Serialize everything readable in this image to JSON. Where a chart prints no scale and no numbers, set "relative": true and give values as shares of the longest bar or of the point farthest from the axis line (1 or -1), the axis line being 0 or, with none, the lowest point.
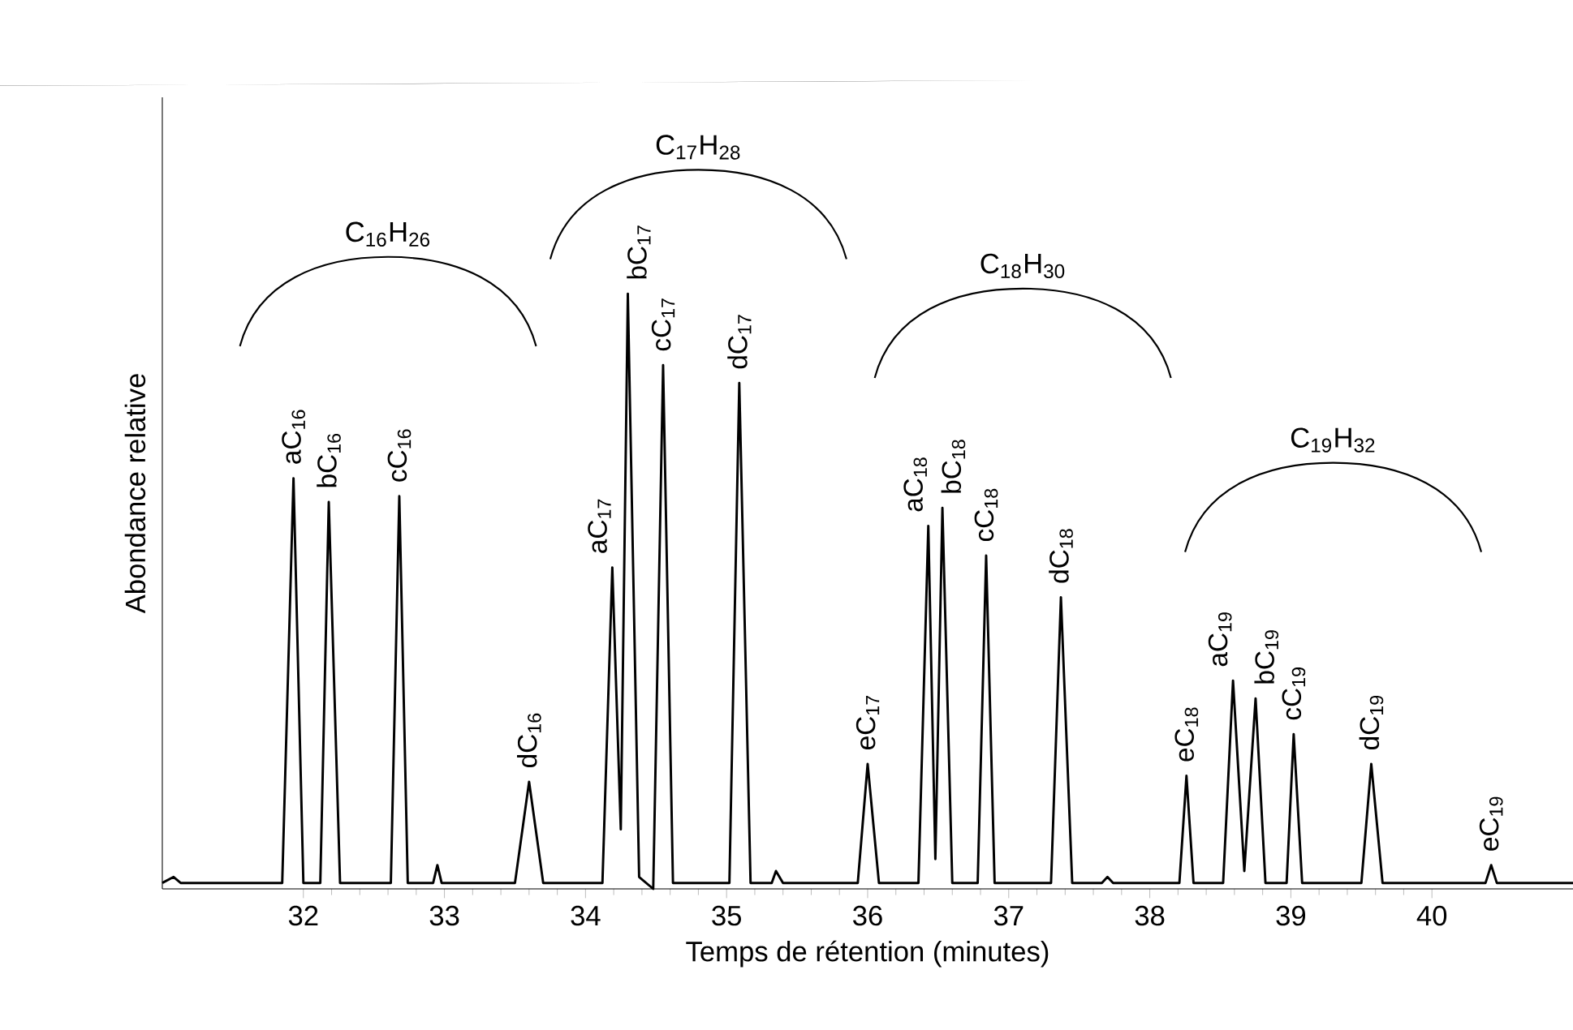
{
  "chart_data": {
    "type": "line",
    "relative": true,
    "xlabel": "Temps de rétention (minutes)",
    "ylabel": "Abondance relative",
    "xlim": [
      31,
      41
    ],
    "xticks": [
      32,
      33,
      34,
      35,
      36,
      37,
      38,
      39,
      40
    ],
    "color": "#000000",
    "x": [
      31.0,
      31.08,
      31.13,
      31.85,
      31.93,
      32.0,
      32.12,
      32.18,
      32.26,
      32.62,
      32.68,
      32.74,
      32.92,
      32.95,
      32.98,
      33.5,
      33.6,
      33.7,
      34.12,
      34.19,
      34.25,
      34.3,
      34.38,
      34.48,
      34.55,
      34.62,
      35.02,
      35.09,
      35.17,
      35.32,
      35.35,
      35.4,
      35.93,
      36.0,
      36.08,
      36.36,
      36.43,
      36.48,
      36.53,
      36.6,
      36.78,
      36.84,
      36.9,
      37.3,
      37.37,
      37.45,
      37.66,
      37.7,
      37.74,
      38.21,
      38.26,
      38.31,
      38.52,
      38.59,
      38.67,
      38.75,
      38.82,
      38.97,
      39.02,
      39.08,
      39.5,
      39.57,
      39.65,
      40.38,
      40.42,
      40.46,
      41.0
    ],
    "values": [
      0.01,
      0.02,
      0.01,
      0.01,
      0.69,
      0.01,
      0.01,
      0.65,
      0.01,
      0.01,
      0.66,
      0.01,
      0.01,
      0.04,
      0.01,
      0.01,
      0.18,
      0.01,
      0.01,
      0.54,
      0.1,
      1.0,
      0.02,
      0.0,
      0.88,
      0.01,
      0.01,
      0.85,
      0.01,
      0.01,
      0.03,
      0.01,
      0.01,
      0.21,
      0.01,
      0.01,
      0.61,
      0.05,
      0.64,
      0.01,
      0.01,
      0.56,
      0.01,
      0.01,
      0.49,
      0.01,
      0.01,
      0.02,
      0.01,
      0.01,
      0.19,
      0.01,
      0.01,
      0.35,
      0.03,
      0.32,
      0.01,
      0.01,
      0.26,
      0.01,
      0.01,
      0.21,
      0.01,
      0.01,
      0.04,
      0.01,
      0.01
    ],
    "annotations": [
      {
        "text": "aC$_{16}$",
        "x": 31.93,
        "y": 0.69
      },
      {
        "text": "bC$_{16}$",
        "x": 32.18,
        "y": 0.65
      },
      {
        "text": "cC$_{16}$",
        "x": 32.68,
        "y": 0.66
      },
      {
        "text": "dC$_{16}$",
        "x": 33.6,
        "y": 0.18
      },
      {
        "text": "aC$_{17}$",
        "x": 34.19,
        "y": 0.54
      },
      {
        "text": "bC$_{17}$",
        "x": 34.3,
        "y": 1.0
      },
      {
        "text": "cC$_{17}$",
        "x": 34.55,
        "y": 0.88
      },
      {
        "text": "dC$_{17}$",
        "x": 35.09,
        "y": 0.85
      },
      {
        "text": "eC$_{17}$",
        "x": 36.0,
        "y": 0.21
      },
      {
        "text": "aC$_{18}$",
        "x": 36.43,
        "y": 0.61
      },
      {
        "text": "bC$_{18}$",
        "x": 36.53,
        "y": 0.64
      },
      {
        "text": "cC$_{18}$",
        "x": 36.84,
        "y": 0.56
      },
      {
        "text": "dC$_{18}$",
        "x": 37.37,
        "y": 0.49
      },
      {
        "text": "eC$_{18}$",
        "x": 38.26,
        "y": 0.19
      },
      {
        "text": "aC$_{19}$",
        "x": 38.59,
        "y": 0.35
      },
      {
        "text": "bC$_{19}$",
        "x": 38.75,
        "y": 0.32
      },
      {
        "text": "cC$_{19}$",
        "x": 39.02,
        "y": 0.26
      },
      {
        "text": "dC$_{19}$",
        "x": 39.57,
        "y": 0.21
      },
      {
        "text": "eC$_{19}$",
        "x": 40.42,
        "y": 0.04
      },
      "C$_{16}$H$_{26}$",
      "C$_{17}$H$_{28}$",
      "C$_{18}$H$_{30}$",
      "C$_{19}$H$_{32}$"
    ]
  }
}
